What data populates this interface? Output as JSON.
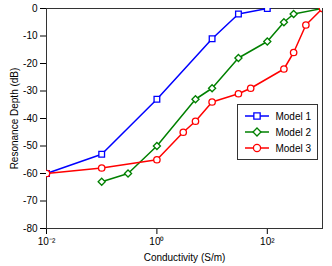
{
  "chart_data": {
    "type": "line",
    "x_label": "Conductivity (S/m)",
    "y_label": "Resonance Depth (dB)",
    "log": "x",
    "grid": false,
    "legend": "right",
    "xlim": [
      0.01,
      1000
    ],
    "xticks": [
      {
        "value": 0.01,
        "label": "10⁻²"
      },
      {
        "value": 1,
        "label": "10⁰"
      },
      {
        "value": 100,
        "label": "10²"
      }
    ],
    "ylim": [
      -80,
      0
    ],
    "yticks": [
      -80,
      -70,
      -60,
      -50,
      -40,
      -30,
      -20,
      -10,
      0
    ],
    "series": [
      {
        "name": "Model 1",
        "color": "#0000ff",
        "marker": "square",
        "x": [
          0.01,
          0.1,
          1,
          10,
          30,
          100
        ],
        "values": [
          -60,
          -53,
          -33,
          -11,
          -2,
          0
        ]
      },
      {
        "name": "Model 2",
        "color": "#008000",
        "marker": "diamond",
        "x": [
          0.1,
          0.3,
          1,
          5,
          10,
          30,
          100,
          200,
          300,
          1000
        ],
        "values": [
          -63,
          -60,
          -50,
          -33,
          -29,
          -18,
          -12,
          -5,
          -2,
          0
        ]
      },
      {
        "name": "Model 3",
        "color": "#ff0000",
        "marker": "circle",
        "x": [
          0.01,
          0.1,
          1,
          3,
          5,
          10,
          30,
          50,
          200,
          300,
          500,
          1000
        ],
        "values": [
          -60,
          -58,
          -55,
          -45,
          -41,
          -34,
          -31,
          -29,
          -22,
          -16,
          -6,
          0
        ]
      }
    ]
  }
}
